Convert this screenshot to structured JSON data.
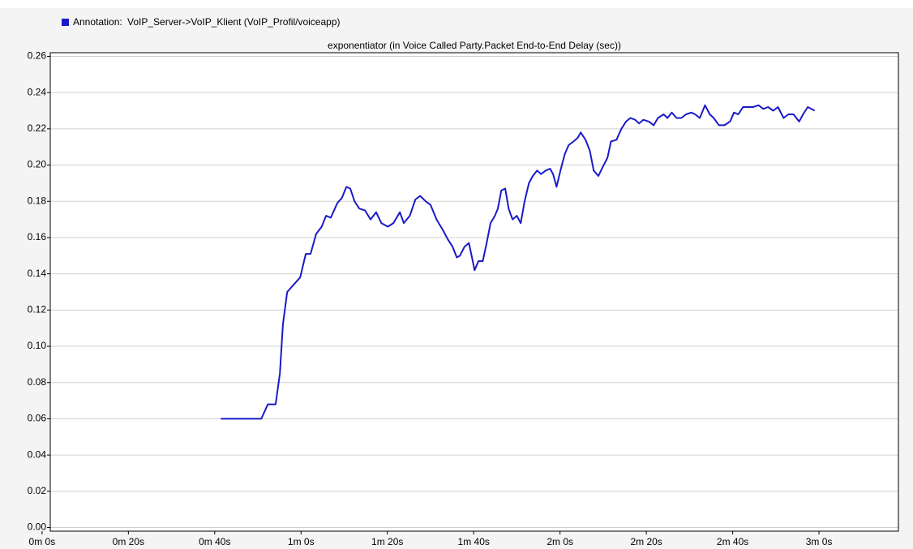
{
  "chart_data": {
    "type": "line",
    "title": "exponentiator (in Voice Called Party.Packet End-to-End Delay (sec))",
    "legend_label": "Annotation:",
    "xlim": [
      1.9,
      198.4
    ],
    "xticks": [
      {
        "value": 0,
        "label": "0m 0s"
      },
      {
        "value": 20,
        "label": "0m 20s"
      },
      {
        "value": 40,
        "label": "0m 40s"
      },
      {
        "value": 60,
        "label": "1m 0s"
      },
      {
        "value": 80,
        "label": "1m 20s"
      },
      {
        "value": 100,
        "label": "1m 40s"
      },
      {
        "value": 120,
        "label": "2m 0s"
      },
      {
        "value": 140,
        "label": "2m 20s"
      },
      {
        "value": 160,
        "label": "2m 40s"
      },
      {
        "value": 180,
        "label": "3m 0s"
      }
    ],
    "ylim": [
      -0.002,
      0.262
    ],
    "yticks": [
      {
        "value": 0,
        "label": "0.00"
      },
      0.02,
      0.04,
      0.06,
      0.08,
      {
        "value": 0.1,
        "label": "0.10"
      },
      0.12,
      0.14,
      0.16,
      0.18,
      {
        "value": 0.2,
        "label": "0.20"
      },
      0.22,
      0.24,
      0.26
    ],
    "grid": true,
    "x": [
      41.4,
      50.8,
      52.3,
      54.1,
      55.1,
      55.8,
      56.8,
      58.3,
      59.8,
      61.1,
      62.2,
      63.5,
      64.8,
      65.8,
      66.9,
      68.4,
      69.5,
      70.5,
      71.4,
      72.4,
      73.5,
      74.8,
      76.1,
      77.4,
      78.6,
      80.1,
      81.4,
      82.9,
      83.8,
      85.2,
      86.5,
      87.6,
      88.9,
      90.0,
      91.4,
      92.9,
      94.0,
      95.1,
      96.1,
      96.8,
      97.9,
      98.9,
      99.6,
      100.2,
      101.1,
      102.1,
      103.0,
      103.9,
      104.9,
      105.6,
      106.4,
      107.3,
      108.1,
      109.0,
      110.0,
      110.9,
      111.8,
      112.8,
      113.7,
      114.7,
      115.6,
      116.7,
      117.7,
      118.4,
      119.2,
      120.1,
      121.1,
      122.0,
      123.1,
      124.1,
      124.8,
      125.9,
      126.9,
      127.8,
      128.9,
      129.9,
      131.0,
      131.8,
      133.1,
      134.2,
      135.3,
      136.3,
      137.4,
      138.3,
      139.3,
      140.6,
      141.7,
      142.7,
      144.0,
      144.9,
      145.9,
      147.0,
      148.1,
      149.2,
      150.4,
      151.3,
      152.4,
      153.6,
      154.7,
      155.6,
      156.8,
      158.1,
      159.4,
      160.3,
      161.3,
      162.4,
      163.5,
      164.7,
      166.0,
      167.1,
      168.2,
      169.4,
      170.5,
      171.8,
      172.9,
      174.1,
      175.4,
      176.3,
      177.4,
      179.0
    ],
    "series": [
      {
        "name": "VoIP_Server->VoIP_Klient (VoIP_Profil/voiceapp)",
        "color": "#1a1ac8",
        "values": [
          0.06,
          0.06,
          0.068,
          0.068,
          0.085,
          0.112,
          0.13,
          0.134,
          0.138,
          0.151,
          0.151,
          0.162,
          0.166,
          0.172,
          0.171,
          0.179,
          0.182,
          0.188,
          0.187,
          0.18,
          0.176,
          0.175,
          0.17,
          0.174,
          0.168,
          0.166,
          0.168,
          0.174,
          0.168,
          0.172,
          0.181,
          0.183,
          0.18,
          0.178,
          0.17,
          0.164,
          0.159,
          0.155,
          0.149,
          0.15,
          0.155,
          0.157,
          0.149,
          0.142,
          0.147,
          0.147,
          0.157,
          0.168,
          0.172,
          0.176,
          0.186,
          0.187,
          0.176,
          0.17,
          0.172,
          0.168,
          0.18,
          0.19,
          0.194,
          0.197,
          0.195,
          0.197,
          0.198,
          0.195,
          0.188,
          0.197,
          0.206,
          0.211,
          0.213,
          0.215,
          0.218,
          0.214,
          0.208,
          0.197,
          0.194,
          0.199,
          0.204,
          0.213,
          0.214,
          0.22,
          0.224,
          0.226,
          0.225,
          0.223,
          0.225,
          0.224,
          0.222,
          0.226,
          0.228,
          0.226,
          0.229,
          0.226,
          0.226,
          0.228,
          0.229,
          0.228,
          0.226,
          0.233,
          0.228,
          0.226,
          0.222,
          0.222,
          0.224,
          0.229,
          0.228,
          0.232,
          0.232,
          0.232,
          0.233,
          0.231,
          0.232,
          0.23,
          0.232,
          0.226,
          0.228,
          0.228,
          0.224,
          0.228,
          0.232,
          0.23
        ]
      }
    ]
  }
}
